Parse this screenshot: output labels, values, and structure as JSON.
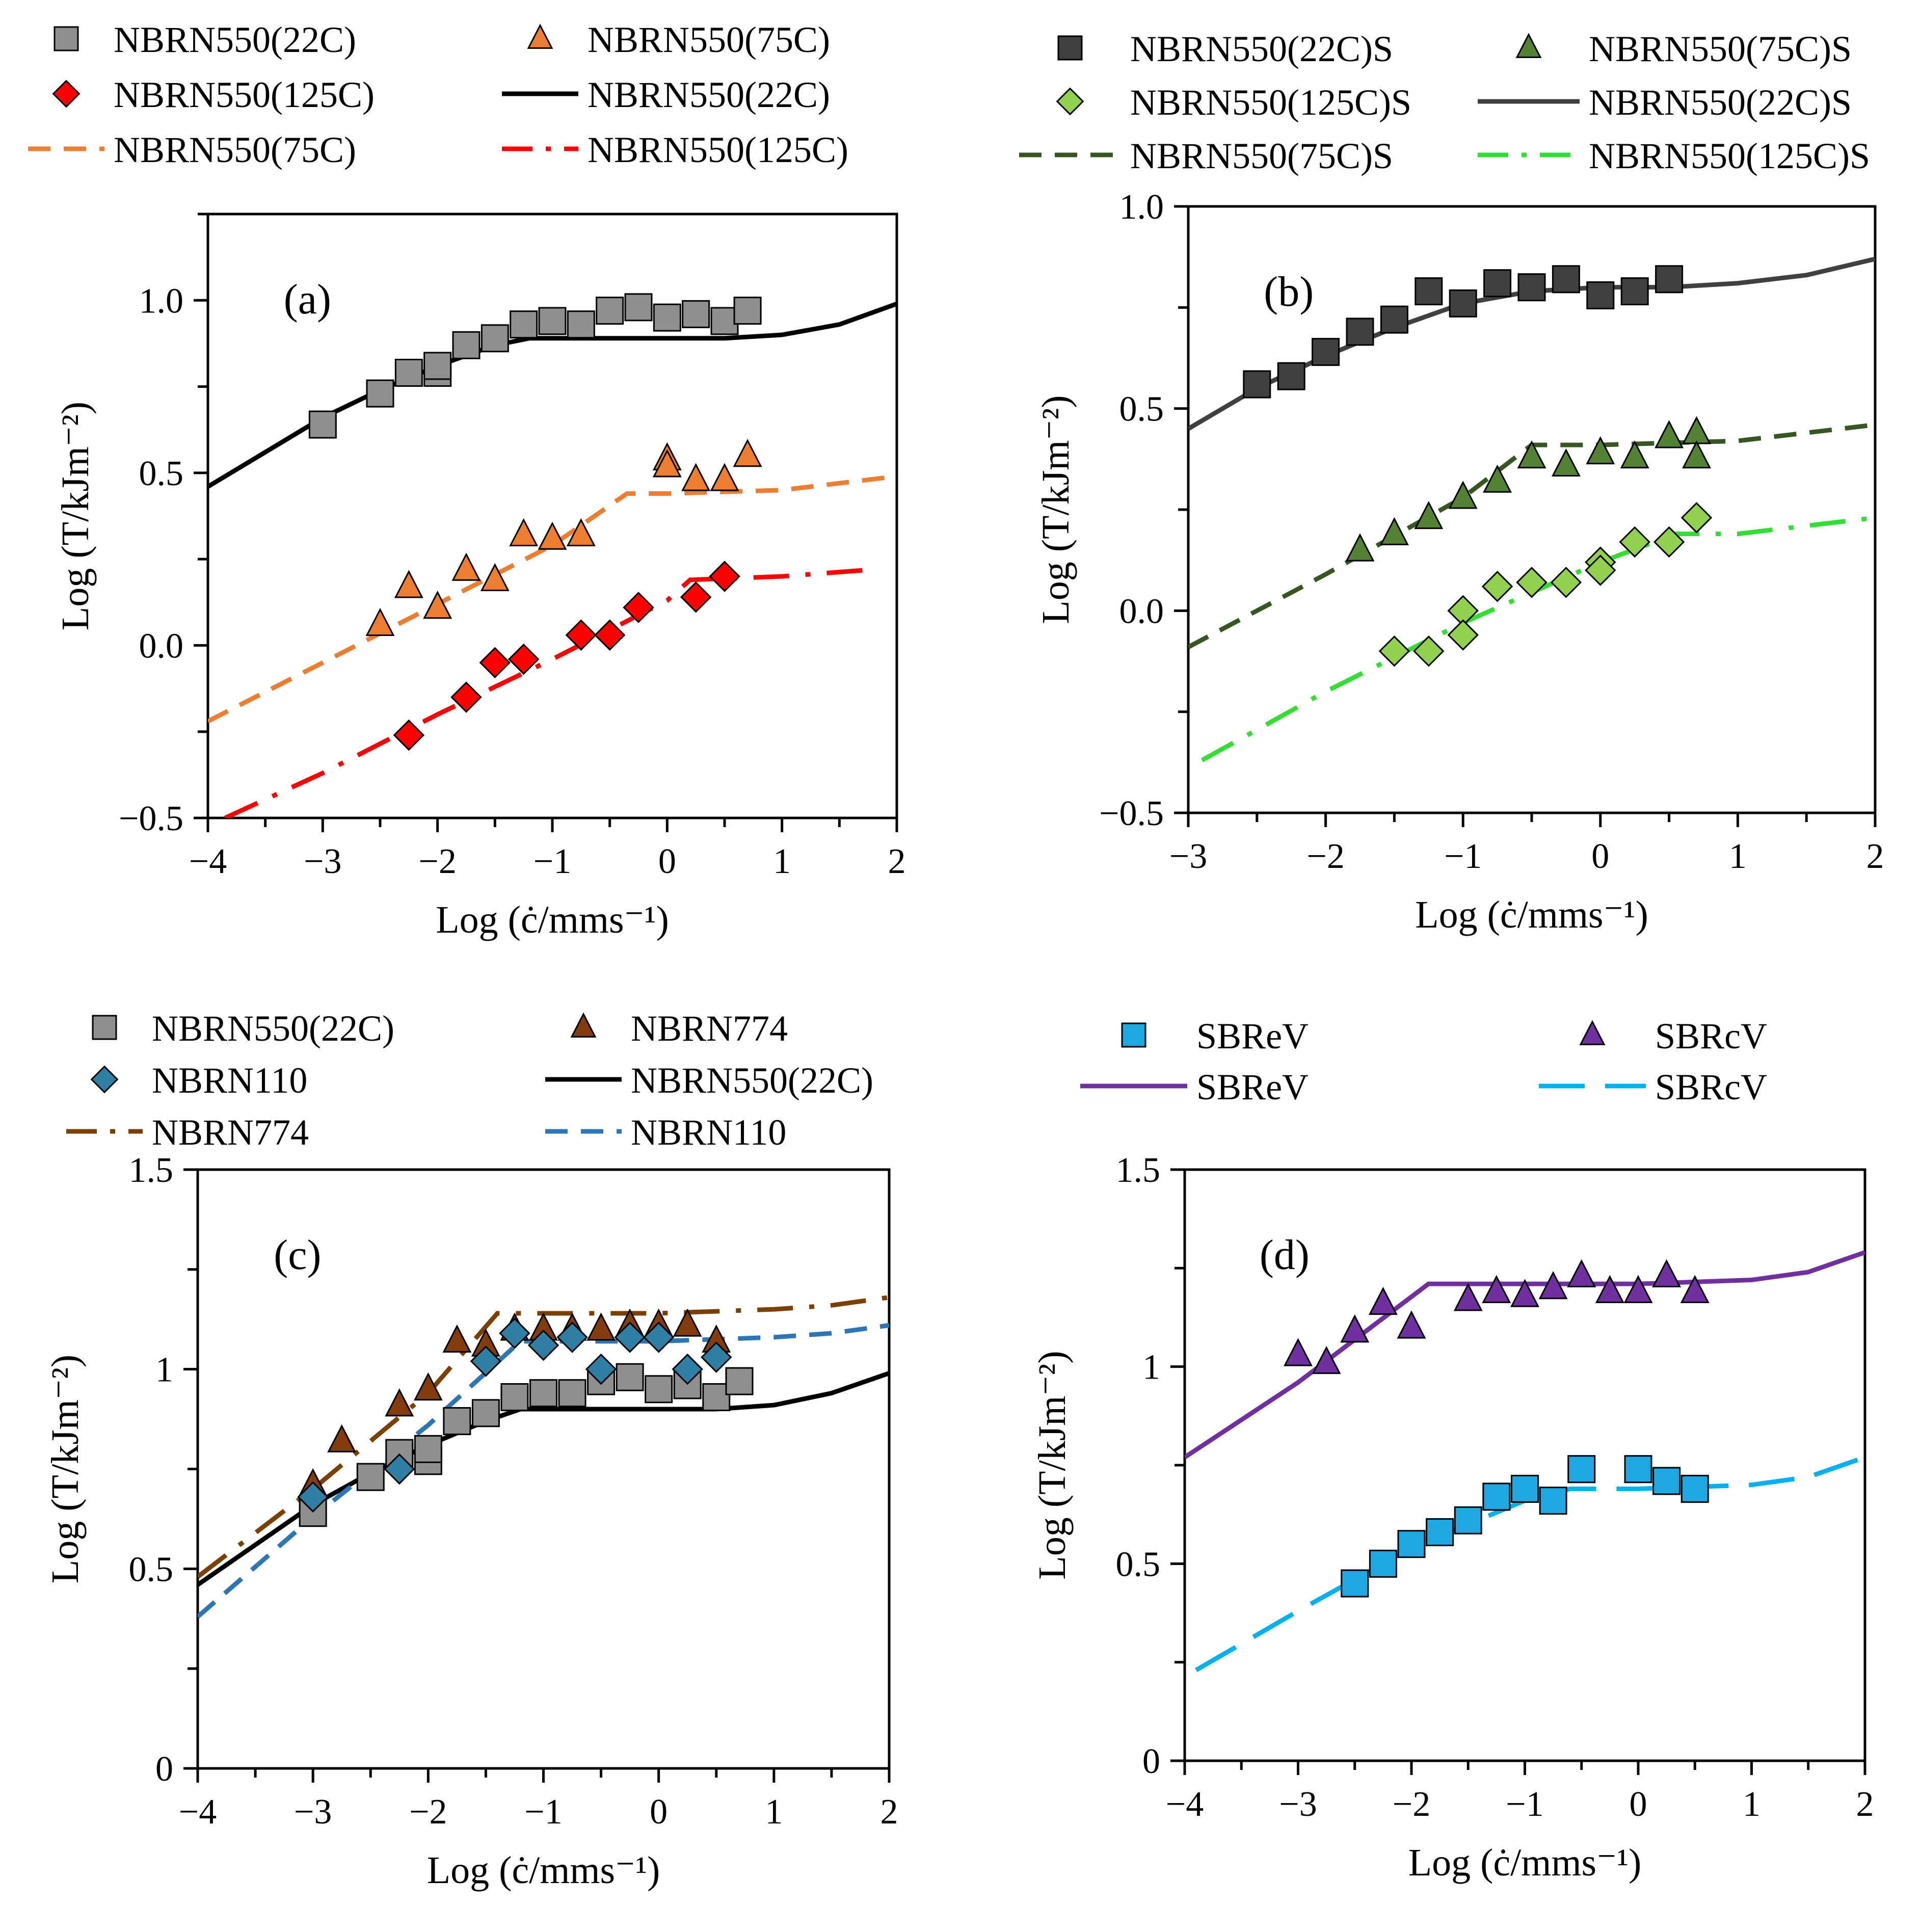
{
  "panels": [
    {
      "id": "a",
      "panel_label": "(a)",
      "xlabel": "Log (ċ/mms⁻¹)",
      "ylabel": "Log (T/kJm⁻²)",
      "xlim": [
        -4,
        2
      ],
      "ylim": [
        -0.5,
        1.25
      ],
      "xticks": [
        -4,
        -3,
        -2,
        -1,
        0,
        1,
        2
      ],
      "xtick_labels": [
        "−4",
        "−3",
        "−2",
        "−1",
        "0",
        "1",
        "2"
      ],
      "yticks": [
        -0.5,
        0.0,
        0.5,
        1.0
      ],
      "ytick_labels": [
        "−0.5",
        "0.0",
        "0.5",
        "1.0"
      ],
      "legend": [
        {
          "label": "NBRN550(22C)",
          "kind": "marker",
          "series": "a-s1"
        },
        {
          "label": "NBRN550(75C)",
          "kind": "marker",
          "series": "a-s2"
        },
        {
          "label": "NBRN550(125C)",
          "kind": "marker",
          "series": "a-s3"
        },
        {
          "label": "NBRN550(22C)",
          "kind": "line",
          "series": "a-l1"
        },
        {
          "label": "NBRN550(75C)",
          "kind": "line",
          "series": "a-l2"
        },
        {
          "label": "NBRN550(125C)",
          "kind": "line",
          "series": "a-l3"
        }
      ]
    },
    {
      "id": "b",
      "panel_label": "(b)",
      "xlabel": "Log (ċ/mms⁻¹)",
      "ylabel": "Log (T/kJm⁻²)",
      "xlim": [
        -3,
        2
      ],
      "ylim": [
        -0.5,
        1.0
      ],
      "xticks": [
        -3,
        -2,
        -1,
        0,
        1,
        2
      ],
      "xtick_labels": [
        "−3",
        "−2",
        "−1",
        "0",
        "1",
        "2"
      ],
      "yticks": [
        -0.5,
        0.0,
        0.5,
        1.0
      ],
      "ytick_labels": [
        "−0.5",
        "0.0",
        "0.5",
        "1.0"
      ],
      "legend": [
        {
          "label": "NBRN550(22C)S",
          "kind": "marker",
          "series": "b-s1"
        },
        {
          "label": "NBRN550(75C)S",
          "kind": "marker",
          "series": "b-s2"
        },
        {
          "label": "NBRN550(125C)S",
          "kind": "marker",
          "series": "b-s3"
        },
        {
          "label": "NBRN550(22C)S",
          "kind": "line",
          "series": "b-l1"
        },
        {
          "label": "NBRN550(75C)S",
          "kind": "line",
          "series": "b-l2"
        },
        {
          "label": "NBRN550(125C)S",
          "kind": "line",
          "series": "b-l3"
        }
      ]
    },
    {
      "id": "c",
      "panel_label": "(c)",
      "xlabel": "Log (ċ/mms⁻¹)",
      "ylabel": "Log (T/kJm⁻²)",
      "xlim": [
        -4,
        2
      ],
      "ylim": [
        0,
        1.5
      ],
      "xticks": [
        -4,
        -3,
        -2,
        -1,
        0,
        1,
        2
      ],
      "xtick_labels": [
        "−4",
        "−3",
        "−2",
        "−1",
        "0",
        "1",
        "2"
      ],
      "yticks": [
        0,
        0.5,
        1,
        1.5
      ],
      "ytick_labels": [
        "0",
        "0.5",
        "1",
        "1.5"
      ],
      "legend": [
        {
          "label": "NBRN550(22C)",
          "kind": "marker",
          "series": "c-s1"
        },
        {
          "label": "NBRN774",
          "kind": "marker",
          "series": "c-s2"
        },
        {
          "label": "NBRN110",
          "kind": "marker",
          "series": "c-s3"
        },
        {
          "label": "NBRN550(22C)",
          "kind": "line",
          "series": "c-l1"
        },
        {
          "label": "NBRN774",
          "kind": "line",
          "series": "c-l2"
        },
        {
          "label": "NBRN110",
          "kind": "line",
          "series": "c-l3"
        }
      ]
    },
    {
      "id": "d",
      "panel_label": "(d)",
      "xlabel": "Log (ċ/mms⁻¹)",
      "ylabel": "Log (T/kJm⁻²)",
      "xlim": [
        -4,
        2
      ],
      "ylim": [
        0,
        1.5
      ],
      "xticks": [
        -4,
        -3,
        -2,
        -1,
        0,
        1,
        2
      ],
      "xtick_labels": [
        "−4",
        "−3",
        "−2",
        "−1",
        "0",
        "1",
        "2"
      ],
      "yticks": [
        0,
        0.5,
        1,
        1.5
      ],
      "ytick_labels": [
        "0",
        "0.5",
        "1",
        "1.5"
      ],
      "legend": [
        {
          "label": "SBReV",
          "kind": "marker",
          "series": "d-s1"
        },
        {
          "label": "SBRcV",
          "kind": "marker",
          "series": "d-s2"
        },
        {
          "label": "SBReV",
          "kind": "line",
          "series": "d-l1"
        },
        {
          "label": "SBRcV",
          "kind": "line",
          "series": "d-l2"
        }
      ]
    }
  ],
  "chart_data": [
    {
      "type": "scatter",
      "panel": "a",
      "title": "(a)",
      "xlabel": "Log (ċ/mms⁻¹)",
      "ylabel": "Log (T/kJm⁻²)",
      "xlim": [
        -4,
        2
      ],
      "ylim": [
        -0.5,
        1.25
      ],
      "series": [
        {
          "id": "a-s1",
          "name": "NBRN550(22C)",
          "kind": "marker",
          "marker": "square",
          "color": "#8f8f8f",
          "x": [
            -3.0,
            -2.5,
            -2.25,
            -2.0,
            -2.0,
            -1.75,
            -1.5,
            -1.25,
            -1.0,
            -0.75,
            -0.5,
            -0.25,
            0.0,
            0.25,
            0.5,
            0.7
          ],
          "y": [
            0.64,
            0.73,
            0.79,
            0.79,
            0.81,
            0.87,
            0.89,
            0.93,
            0.94,
            0.93,
            0.97,
            0.98,
            0.95,
            0.96,
            0.94,
            0.97
          ]
        },
        {
          "id": "a-s2",
          "name": "NBRN550(75C)",
          "kind": "marker",
          "marker": "triangle",
          "color": "#ed7d31",
          "x": [
            -2.5,
            -2.25,
            -2.0,
            -1.75,
            -1.5,
            -1.25,
            -1.0,
            -0.75,
            0.0,
            0.0,
            0.25,
            0.5,
            0.7
          ],
          "y": [
            0.06,
            0.17,
            0.11,
            0.22,
            0.19,
            0.32,
            0.31,
            0.32,
            0.54,
            0.52,
            0.48,
            0.48,
            0.55
          ]
        },
        {
          "id": "a-s3",
          "name": "NBRN550(125C)",
          "kind": "marker",
          "marker": "diamond",
          "color": "#ff0000",
          "x": [
            -2.25,
            -1.75,
            -1.5,
            -1.25,
            -0.75,
            -0.5,
            -0.25,
            0.25,
            0.5
          ],
          "y": [
            -0.26,
            -0.15,
            -0.05,
            -0.04,
            0.03,
            0.03,
            0.11,
            0.14,
            0.2
          ]
        },
        {
          "id": "a-l1",
          "name": "NBRN550(22C)",
          "kind": "line",
          "dash": "solid",
          "color": "#000000",
          "x": [
            -4.0,
            -3.5,
            -3.0,
            -2.5,
            -2.0,
            -1.5,
            -1.2,
            -0.5,
            0.0,
            0.5,
            1.0,
            1.5,
            2.0
          ],
          "y": [
            0.46,
            0.56,
            0.66,
            0.74,
            0.81,
            0.87,
            0.89,
            0.89,
            0.89,
            0.89,
            0.9,
            0.93,
            0.99
          ]
        },
        {
          "id": "a-l2",
          "name": "NBRN550(75C)",
          "kind": "line",
          "dash": "dash",
          "color": "#ed7d31",
          "x": [
            -4.0,
            -3.0,
            -2.0,
            -1.0,
            -0.35,
            0.0,
            1.0,
            2.0
          ],
          "y": [
            -0.22,
            -0.05,
            0.12,
            0.29,
            0.44,
            0.44,
            0.45,
            0.49
          ]
        },
        {
          "id": "a-l3",
          "name": "NBRN550(125C)",
          "kind": "line",
          "dash": "dashdot",
          "color": "#ff0000",
          "x": [
            -3.85,
            -3.0,
            -2.0,
            -1.0,
            0.0,
            0.2,
            1.0,
            1.8
          ],
          "y": [
            -0.5,
            -0.37,
            -0.2,
            -0.04,
            0.13,
            0.19,
            0.2,
            0.22
          ]
        }
      ]
    },
    {
      "type": "scatter",
      "panel": "b",
      "title": "(b)",
      "xlabel": "Log (ċ/mms⁻¹)",
      "ylabel": "Log (T/kJm⁻²)",
      "xlim": [
        -3,
        2
      ],
      "ylim": [
        -0.5,
        1.0
      ],
      "series": [
        {
          "id": "b-s1",
          "name": "NBRN550(22C)S",
          "kind": "marker",
          "marker": "square",
          "color": "#404040",
          "x": [
            -2.5,
            -2.25,
            -2.0,
            -1.75,
            -1.5,
            -1.25,
            -1.0,
            -0.75,
            -0.5,
            -0.25,
            0.0,
            0.25,
            0.5
          ],
          "y": [
            0.56,
            0.58,
            0.64,
            0.69,
            0.72,
            0.79,
            0.76,
            0.81,
            0.8,
            0.82,
            0.78,
            0.79,
            0.82
          ]
        },
        {
          "id": "b-s2",
          "name": "NBRN550(75C)S",
          "kind": "marker",
          "marker": "triangle",
          "color": "#548235",
          "x": [
            -1.75,
            -1.5,
            -1.25,
            -1.0,
            -0.75,
            -0.5,
            -0.25,
            0.0,
            0.25,
            0.5,
            0.7,
            0.7
          ],
          "y": [
            0.15,
            0.19,
            0.23,
            0.28,
            0.32,
            0.38,
            0.36,
            0.39,
            0.38,
            0.43,
            0.44,
            0.38
          ]
        },
        {
          "id": "b-s3",
          "name": "NBRN550(125C)S",
          "kind": "marker",
          "marker": "diamond",
          "color": "#92d050",
          "x": [
            -1.5,
            -1.25,
            -1.0,
            -1.0,
            -0.75,
            -0.5,
            -0.25,
            0.0,
            0.0,
            0.25,
            0.5,
            0.7
          ],
          "y": [
            -0.1,
            -0.1,
            0.0,
            -0.06,
            0.06,
            0.07,
            0.07,
            0.12,
            0.1,
            0.17,
            0.17,
            0.23
          ]
        },
        {
          "id": "b-l1",
          "name": "NBRN550(22C)S",
          "kind": "line",
          "dash": "solid",
          "color": "#404040",
          "x": [
            -3.0,
            -2.5,
            -2.0,
            -1.5,
            -1.0,
            -0.5,
            0.0,
            0.5,
            1.0,
            1.5,
            2.0
          ],
          "y": [
            0.45,
            0.55,
            0.63,
            0.7,
            0.76,
            0.79,
            0.8,
            0.8,
            0.81,
            0.83,
            0.87
          ]
        },
        {
          "id": "b-l2",
          "name": "NBRN550(75C)S",
          "kind": "line",
          "dash": "dash",
          "color": "#375623",
          "x": [
            -3.0,
            -2.0,
            -1.0,
            -0.5,
            0.0,
            1.0,
            2.0
          ],
          "y": [
            -0.09,
            0.09,
            0.28,
            0.41,
            0.41,
            0.42,
            0.46
          ]
        },
        {
          "id": "b-l3",
          "name": "NBRN550(125C)S",
          "kind": "line",
          "dash": "dashdot",
          "color": "#33dd33",
          "x": [
            -2.9,
            -2.0,
            -1.0,
            0.0,
            0.55,
            1.0,
            2.0
          ],
          "y": [
            -0.37,
            -0.2,
            -0.03,
            0.12,
            0.19,
            0.19,
            0.23
          ]
        }
      ]
    },
    {
      "type": "scatter",
      "panel": "c",
      "title": "(c)",
      "xlabel": "Log (ċ/mms⁻¹)",
      "ylabel": "Log (T/kJm⁻²)",
      "xlim": [
        -4,
        2
      ],
      "ylim": [
        0,
        1.5
      ],
      "series": [
        {
          "id": "c-s1",
          "name": "NBRN550(22C)",
          "kind": "marker",
          "marker": "square",
          "color": "#8f8f8f",
          "x": [
            -3.0,
            -2.5,
            -2.25,
            -2.0,
            -2.0,
            -1.75,
            -1.5,
            -1.25,
            -1.0,
            -0.75,
            -0.5,
            -0.25,
            0.0,
            0.25,
            0.5,
            0.7
          ],
          "y": [
            0.64,
            0.73,
            0.79,
            0.77,
            0.8,
            0.87,
            0.89,
            0.93,
            0.94,
            0.94,
            0.97,
            0.98,
            0.95,
            0.96,
            0.93,
            0.97
          ]
        },
        {
          "id": "c-s2",
          "name": "NBRN774",
          "kind": "marker",
          "marker": "triangle",
          "color": "#843c0c",
          "x": [
            -3.0,
            -2.75,
            -2.25,
            -2.0,
            -1.75,
            -1.5,
            -1.25,
            -1.0,
            -0.75,
            -0.5,
            -0.25,
            0.0,
            0.25,
            0.5
          ],
          "y": [
            0.71,
            0.82,
            0.91,
            0.95,
            1.07,
            1.06,
            1.1,
            1.1,
            1.1,
            1.1,
            1.11,
            1.11,
            1.11,
            1.07
          ]
        },
        {
          "id": "c-s3",
          "name": "NBRN110",
          "kind": "marker",
          "marker": "diamond",
          "color": "#2f7ea3",
          "x": [
            -3.0,
            -2.25,
            -1.5,
            -1.25,
            -1.0,
            -0.75,
            -0.5,
            -0.25,
            0.0,
            0.25,
            0.5
          ],
          "y": [
            0.68,
            0.75,
            1.02,
            1.09,
            1.06,
            1.08,
            1.0,
            1.08,
            1.08,
            1.0,
            1.03
          ]
        },
        {
          "id": "c-l1",
          "name": "NBRN550(22C)",
          "kind": "line",
          "dash": "solid",
          "color": "#000000",
          "x": [
            -4.0,
            -3.5,
            -3.0,
            -2.5,
            -2.0,
            -1.5,
            -1.2,
            -0.5,
            0.0,
            0.5,
            1.0,
            1.5,
            2.0
          ],
          "y": [
            0.46,
            0.56,
            0.66,
            0.74,
            0.81,
            0.87,
            0.9,
            0.9,
            0.9,
            0.9,
            0.91,
            0.94,
            0.99
          ]
        },
        {
          "id": "c-l2",
          "name": "NBRN774",
          "kind": "line",
          "dash": "dashdot",
          "color": "#7b3f00",
          "x": [
            -4.0,
            -3.0,
            -2.0,
            -1.4,
            0.0,
            1.0,
            1.5,
            2.0
          ],
          "y": [
            0.48,
            0.7,
            0.94,
            1.14,
            1.14,
            1.15,
            1.16,
            1.18
          ]
        },
        {
          "id": "c-l3",
          "name": "NBRN110",
          "kind": "line",
          "dash": "dash",
          "color": "#2e75b6",
          "x": [
            -4.0,
            -3.0,
            -2.0,
            -1.2,
            0.0,
            1.0,
            1.5,
            2.0
          ],
          "y": [
            0.38,
            0.63,
            0.86,
            1.07,
            1.07,
            1.08,
            1.09,
            1.11
          ]
        }
      ]
    },
    {
      "type": "scatter",
      "panel": "d",
      "title": "(d)",
      "xlabel": "Log (ċ/mms⁻¹)",
      "ylabel": "Log (T/kJm⁻²)",
      "xlim": [
        -4,
        2
      ],
      "ylim": [
        0,
        1.5
      ],
      "series": [
        {
          "id": "d-s1",
          "name": "SBReV",
          "kind": "marker",
          "marker": "square",
          "color": "#1fa7e1",
          "x": [
            -2.5,
            -2.25,
            -2.0,
            -1.75,
            -1.5,
            -1.25,
            -1.0,
            -0.75,
            -0.5,
            0.0,
            0.25,
            0.5
          ],
          "y": [
            0.45,
            0.5,
            0.55,
            0.58,
            0.61,
            0.67,
            0.69,
            0.66,
            0.74,
            0.74,
            0.71,
            0.69
          ]
        },
        {
          "id": "d-s2",
          "name": "SBRcV",
          "kind": "marker",
          "marker": "triangle",
          "color": "#7030a0",
          "x": [
            -3.0,
            -2.75,
            -2.5,
            -2.25,
            -2.0,
            -1.5,
            -1.25,
            -1.0,
            -0.75,
            -0.5,
            -0.25,
            0.0,
            0.25,
            0.5
          ],
          "y": [
            1.03,
            1.01,
            1.09,
            1.16,
            1.1,
            1.17,
            1.19,
            1.18,
            1.2,
            1.23,
            1.19,
            1.19,
            1.23,
            1.19
          ]
        },
        {
          "id": "d-l1",
          "name": "SBReV",
          "kind": "line",
          "dash": "solid",
          "color": "#7030a0",
          "x": [
            -4.0,
            -3.0,
            -1.85,
            0.0,
            1.0,
            1.5,
            2.0
          ],
          "y": [
            0.77,
            0.96,
            1.21,
            1.21,
            1.22,
            1.24,
            1.29
          ]
        },
        {
          "id": "d-l2",
          "name": "SBRcV",
          "kind": "line",
          "dash": "longdash",
          "color": "#00b0f0",
          "x": [
            -3.9,
            -3.0,
            -2.0,
            -1.0,
            -0.6,
            0.0,
            1.0,
            1.5,
            2.0
          ],
          "y": [
            0.23,
            0.38,
            0.54,
            0.66,
            0.69,
            0.69,
            0.7,
            0.72,
            0.77
          ]
        }
      ]
    }
  ]
}
